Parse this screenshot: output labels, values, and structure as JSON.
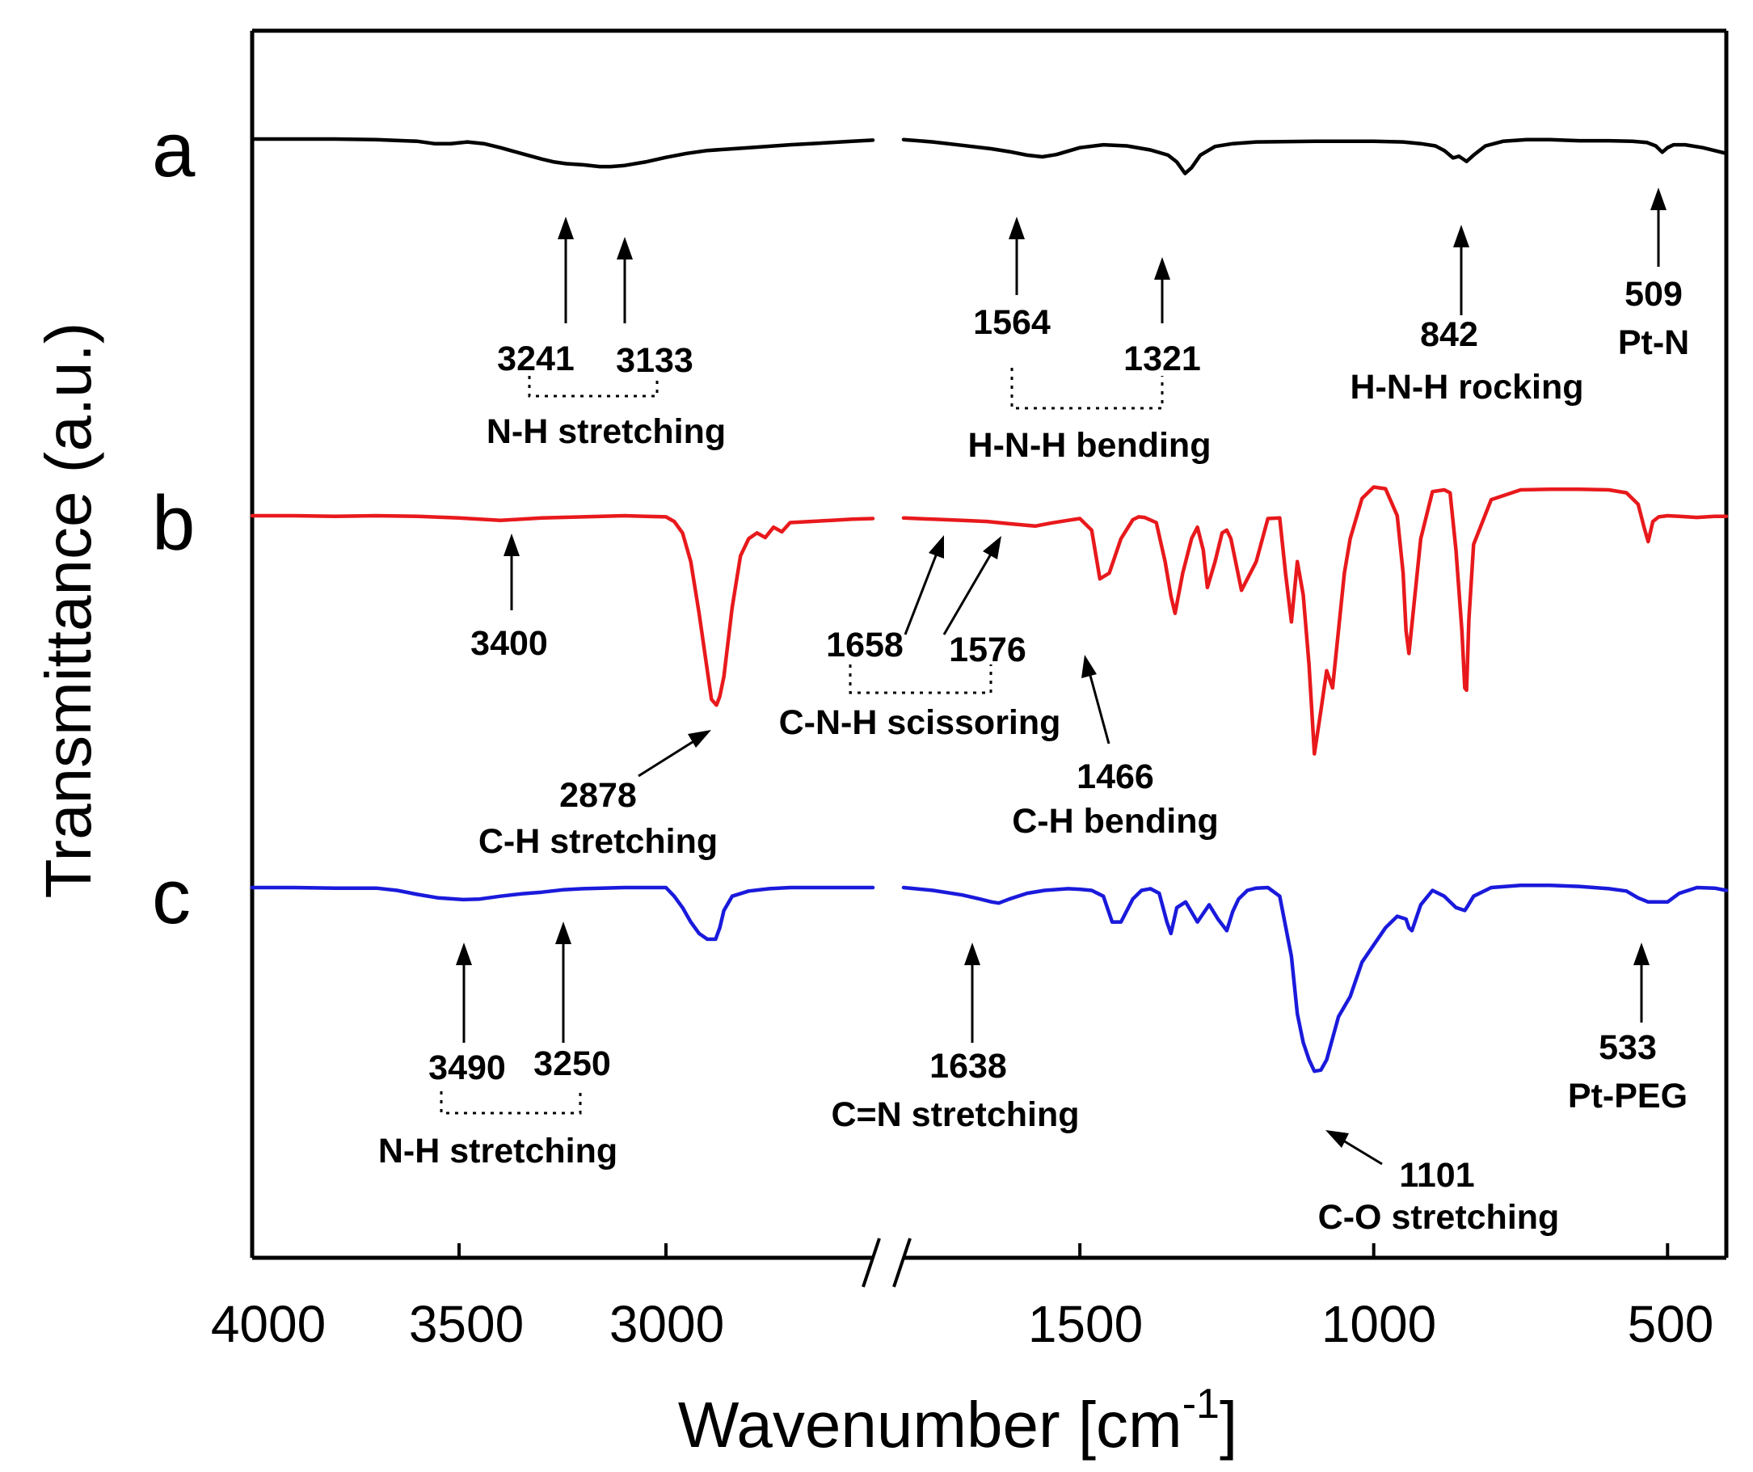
{
  "chart_data": {
    "type": "line",
    "xlabel": "Wavenumber [cm",
    "xlabel_superscript": "-1",
    "xlabel_suffix": "]",
    "ylabel": "Transmittance (a.u.)",
    "x_reversed": true,
    "x_axis_break": [
      2500,
      1800
    ],
    "xlim": [
      4000,
      400
    ],
    "x_ticks": [
      {
        "value": 4000,
        "label": "4000"
      },
      {
        "value": 3500,
        "label": "3500"
      },
      {
        "value": 3000,
        "label": "3000"
      },
      {
        "value": 1500,
        "label": "1500"
      },
      {
        "value": 1000,
        "label": "1000"
      },
      {
        "value": 500,
        "label": "500"
      }
    ],
    "series": [
      {
        "name": "a",
        "color": "#000000",
        "x": [
          4000,
          3900,
          3800,
          3700,
          3600,
          3560,
          3520,
          3480,
          3440,
          3400,
          3350,
          3300,
          3270,
          3241,
          3200,
          3160,
          3133,
          3100,
          3050,
          3000,
          2950,
          2900,
          2800,
          2700,
          2600,
          2550,
          2500,
          1800,
          1750,
          1700,
          1650,
          1620,
          1590,
          1564,
          1540,
          1500,
          1460,
          1420,
          1380,
          1350,
          1335,
          1321,
          1310,
          1295,
          1270,
          1240,
          1200,
          1100,
          1050,
          1000,
          950,
          920,
          895,
          880,
          865,
          855,
          842,
          830,
          810,
          780,
          740,
          700,
          650,
          600,
          560,
          535,
          520,
          509,
          500,
          490,
          470,
          440,
          400
        ],
        "y": [
          100,
          100,
          100,
          101,
          104,
          108,
          108,
          105,
          108,
          115,
          125,
          135,
          140,
          143,
          145,
          148,
          148,
          146,
          140,
          132,
          125,
          120,
          115,
          110,
          106,
          104,
          102,
          101,
          105,
          111,
          117,
          122,
          128,
          131,
          127,
          115,
          110,
          112,
          119,
          128,
          140,
          160,
          150,
          128,
          113,
          108,
          105,
          104,
          104,
          104,
          105,
          108,
          112,
          120,
          133,
          130,
          139,
          128,
          112,
          104,
          101,
          101,
          103,
          103,
          104,
          106,
          112,
          123,
          115,
          110,
          110,
          115,
          125
        ]
      },
      {
        "name": "b",
        "color": "#e8191c",
        "x": [
          4000,
          3900,
          3800,
          3700,
          3600,
          3500,
          3450,
          3400,
          3350,
          3300,
          3200,
          3100,
          3050,
          3000,
          2980,
          2960,
          2940,
          2920,
          2900,
          2890,
          2878,
          2870,
          2860,
          2840,
          2820,
          2800,
          2780,
          2760,
          2740,
          2720,
          2700,
          2650,
          2600,
          2550,
          2500,
          1800,
          1750,
          1700,
          1658,
          1620,
          1576,
          1550,
          1520,
          1500,
          1480,
          1466,
          1450,
          1430,
          1410,
          1400,
          1390,
          1370,
          1355,
          1345,
          1338,
          1325,
          1310,
          1300,
          1290,
          1283,
          1270,
          1258,
          1250,
          1243,
          1225,
          1200,
          1180,
          1160,
          1150,
          1140,
          1130,
          1120,
          1110,
          1101,
          1090,
          1080,
          1070,
          1060,
          1050,
          1040,
          1020,
          1000,
          980,
          960,
          950,
          945,
          940,
          920,
          900,
          880,
          870,
          860,
          850,
          845,
          842,
          838,
          830,
          800,
          750,
          700,
          650,
          600,
          570,
          550,
          540,
          533,
          525,
          515,
          500,
          480,
          450,
          420,
          400
        ],
        "y": [
          100,
          100,
          101,
          100,
          101,
          104,
          106,
          108,
          106,
          104,
          102,
          100,
          101,
          102,
          110,
          130,
          180,
          270,
          370,
          420,
          430,
          415,
          380,
          260,
          170,
          140,
          130,
          138,
          120,
          128,
          112,
          110,
          108,
          106,
          105,
          104,
          106,
          108,
          110,
          114,
          118,
          113,
          108,
          105,
          125,
          210,
          200,
          140,
          107,
          102,
          103,
          112,
          180,
          240,
          270,
          200,
          140,
          120,
          160,
          225,
          180,
          130,
          125,
          140,
          230,
          180,
          105,
          104,
          200,
          285,
          180,
          238,
          360,
          515,
          440,
          370,
          400,
          300,
          200,
          140,
          70,
          50,
          53,
          100,
          200,
          300,
          340,
          140,
          58,
          55,
          60,
          160,
          300,
          400,
          404,
          280,
          150,
          72,
          55,
          54,
          54,
          55,
          60,
          80,
          120,
          145,
          110,
          102,
          100,
          101,
          103,
          101,
          101
        ]
      },
      {
        "name": "c",
        "color": "#1a1adc",
        "x": [
          4000,
          3900,
          3800,
          3700,
          3650,
          3600,
          3550,
          3490,
          3450,
          3400,
          3350,
          3300,
          3250,
          3200,
          3100,
          3050,
          3000,
          2980,
          2960,
          2940,
          2920,
          2900,
          2880,
          2870,
          2860,
          2840,
          2800,
          2750,
          2700,
          2650,
          2600,
          2550,
          2500,
          1800,
          1750,
          1700,
          1670,
          1650,
          1638,
          1620,
          1590,
          1560,
          1520,
          1500,
          1480,
          1460,
          1445,
          1430,
          1410,
          1395,
          1380,
          1365,
          1352,
          1345,
          1335,
          1320,
          1300,
          1290,
          1280,
          1265,
          1250,
          1240,
          1230,
          1215,
          1200,
          1180,
          1160,
          1140,
          1130,
          1120,
          1110,
          1101,
          1090,
          1080,
          1060,
          1040,
          1020,
          1000,
          980,
          960,
          945,
          940,
          935,
          920,
          900,
          880,
          860,
          845,
          840,
          830,
          800,
          750,
          700,
          650,
          600,
          570,
          550,
          533,
          520,
          500,
          480,
          450,
          420,
          400
        ],
        "y": [
          100,
          100,
          101,
          101,
          105,
          112,
          118,
          121,
          120,
          115,
          111,
          108,
          104,
          102,
          100,
          100,
          100,
          115,
          135,
          160,
          180,
          190,
          190,
          170,
          140,
          115,
          106,
          102,
          100,
          100,
          100,
          100,
          100,
          100,
          105,
          113,
          120,
          125,
          127,
          120,
          110,
          105,
          102,
          103,
          105,
          115,
          160,
          160,
          120,
          105,
          102,
          110,
          160,
          180,
          135,
          125,
          160,
          145,
          130,
          155,
          175,
          142,
          120,
          105,
          101,
          100,
          115,
          220,
          320,
          370,
          400,
          420,
          418,
          400,
          325,
          290,
          230,
          200,
          170,
          150,
          155,
          170,
          175,
          130,
          105,
          115,
          135,
          140,
          132,
          115,
          100,
          96,
          96,
          98,
          102,
          106,
          118,
          125,
          125,
          125,
          110,
          100,
          101,
          105
        ]
      }
    ],
    "series_labels": [
      "a",
      "b",
      "c"
    ],
    "annotations": [
      {
        "series": "a",
        "label": "3241"
      },
      {
        "series": "a",
        "label": "3133"
      },
      {
        "series": "a",
        "label": "N-H stretching"
      },
      {
        "series": "a",
        "label": "1564"
      },
      {
        "series": "a",
        "label": "1321"
      },
      {
        "series": "a",
        "label": "H-N-H bending"
      },
      {
        "series": "a",
        "label": "842"
      },
      {
        "series": "a",
        "label": "H-N-H rocking"
      },
      {
        "series": "a",
        "label": "509"
      },
      {
        "series": "a",
        "label": "Pt-N"
      },
      {
        "series": "b",
        "label": "3400"
      },
      {
        "series": "b",
        "label": "2878"
      },
      {
        "series": "b",
        "label": "C-H stretching"
      },
      {
        "series": "b",
        "label": "1658"
      },
      {
        "series": "b",
        "label": "1576"
      },
      {
        "series": "b",
        "label": "C-N-H scissoring"
      },
      {
        "series": "b",
        "label": "1466"
      },
      {
        "series": "b",
        "label": "C-H bending"
      },
      {
        "series": "c",
        "label": "3490"
      },
      {
        "series": "c",
        "label": "3250"
      },
      {
        "series": "c",
        "label": "N-H stretching"
      },
      {
        "series": "c",
        "label": "1638"
      },
      {
        "series": "c",
        "label": "C=N stretching"
      },
      {
        "series": "c",
        "label": "533"
      },
      {
        "series": "c",
        "label": "Pt-PEG"
      },
      {
        "series": "c",
        "label": "1101"
      },
      {
        "series": "c",
        "label": "C-O stretching"
      }
    ]
  }
}
